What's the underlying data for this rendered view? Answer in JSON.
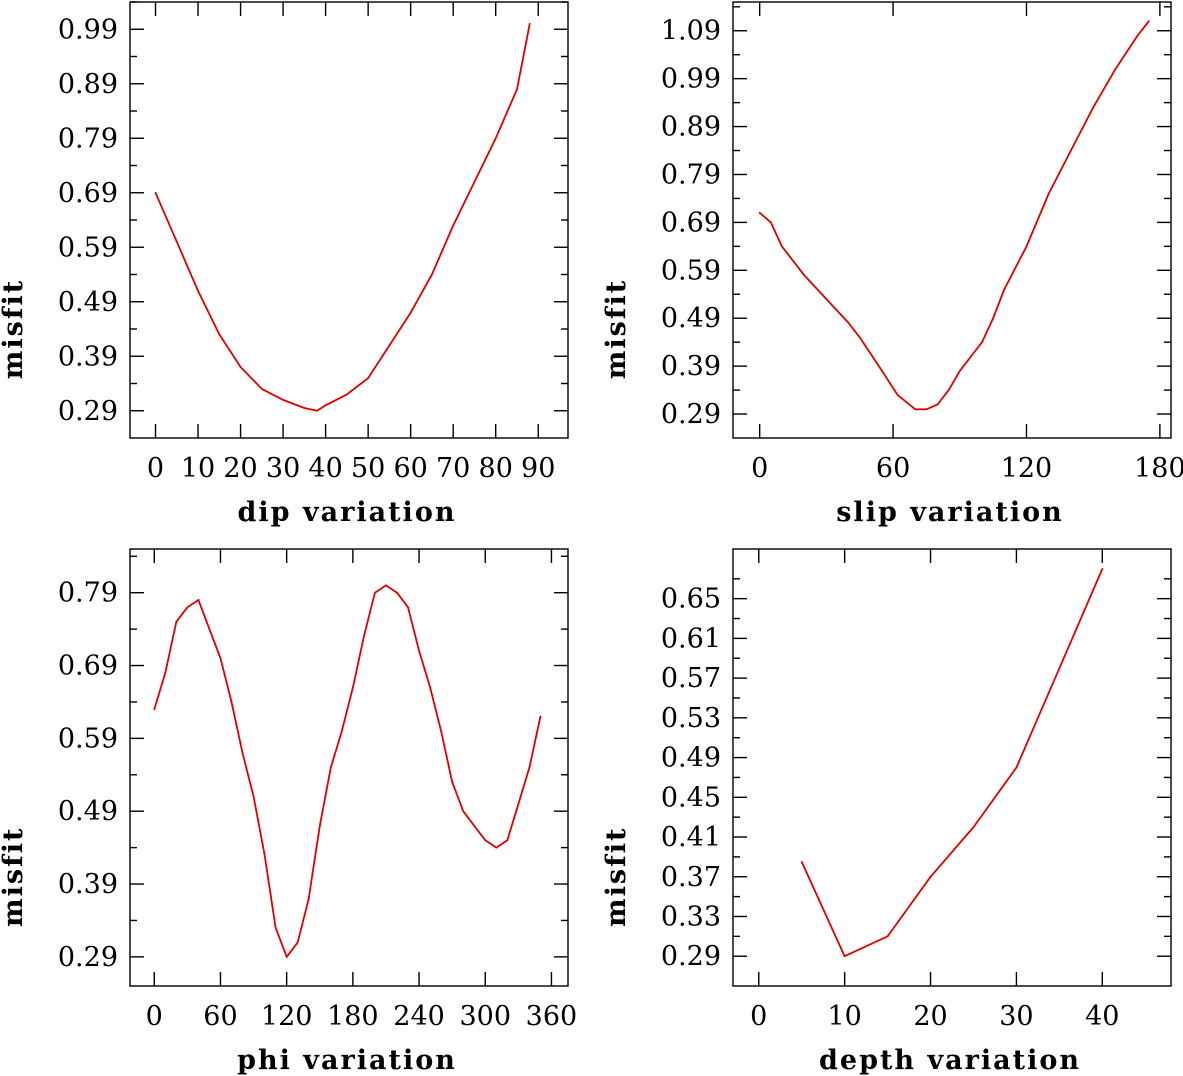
{
  "colors": {
    "curve": "#e00000",
    "axis": "#000000",
    "background": "#ffffff"
  },
  "chart_data": [
    {
      "id": "dip",
      "type": "line",
      "xlabel": "dip    variation",
      "ylabel": "misfit",
      "xlim": [
        -6,
        97
      ],
      "ylim": [
        0.24,
        1.04
      ],
      "xticks": [
        0,
        10,
        20,
        30,
        40,
        50,
        60,
        70,
        80,
        90
      ],
      "xtick_labels": [
        "0",
        "10",
        "20",
        "30",
        "40",
        "50",
        "60",
        "70",
        "80",
        "90"
      ],
      "yticks": [
        0.29,
        0.39,
        0.49,
        0.59,
        0.69,
        0.79,
        0.89,
        0.99
      ],
      "ytick_labels": [
        "0.29",
        "0.39",
        "0.49",
        "0.59",
        "0.69",
        "0.79",
        "0.89",
        "0.99"
      ],
      "x": [
        0,
        5,
        10,
        15,
        20,
        25,
        30,
        35,
        38,
        40,
        45,
        50,
        55,
        60,
        65,
        70,
        75,
        80,
        85,
        88
      ],
      "y": [
        0.69,
        0.6,
        0.51,
        0.43,
        0.37,
        0.33,
        0.31,
        0.295,
        0.29,
        0.3,
        0.32,
        0.35,
        0.41,
        0.47,
        0.54,
        0.63,
        0.71,
        0.79,
        0.88,
        1.0
      ]
    },
    {
      "id": "slip",
      "type": "line",
      "xlabel": "slip   variation",
      "ylabel": "misfit",
      "xlim": [
        -12,
        185
      ],
      "ylim": [
        0.24,
        1.15
      ],
      "xticks": [
        0,
        60,
        120,
        180
      ],
      "xtick_labels": [
        "0",
        "60",
        "120",
        "180"
      ],
      "yticks": [
        0.29,
        0.39,
        0.49,
        0.59,
        0.69,
        0.79,
        0.89,
        0.99,
        1.09
      ],
      "ytick_labels": [
        "0.29",
        "0.39",
        "0.49",
        "0.59",
        "0.69",
        "0.79",
        "0.89",
        "0.99",
        "1.09"
      ],
      "x": [
        0,
        5,
        10,
        20,
        30,
        40,
        45,
        55,
        62,
        70,
        75,
        80,
        85,
        90,
        95,
        100,
        105,
        110,
        120,
        130,
        140,
        150,
        160,
        170,
        175
      ],
      "y": [
        0.71,
        0.69,
        0.64,
        0.58,
        0.53,
        0.48,
        0.45,
        0.38,
        0.33,
        0.3,
        0.3,
        0.31,
        0.34,
        0.38,
        0.41,
        0.44,
        0.49,
        0.55,
        0.64,
        0.75,
        0.84,
        0.93,
        1.01,
        1.08,
        1.11
      ]
    },
    {
      "id": "phi",
      "type": "line",
      "xlabel": "phi    variation",
      "ylabel": "misfit",
      "xlim": [
        -22,
        375
      ],
      "ylim": [
        0.25,
        0.85
      ],
      "xticks": [
        0,
        60,
        120,
        180,
        240,
        300,
        360
      ],
      "xtick_labels": [
        "0",
        "60",
        "120",
        "180",
        "240",
        "300",
        "360"
      ],
      "yticks": [
        0.29,
        0.39,
        0.49,
        0.59,
        0.69,
        0.79
      ],
      "ytick_labels": [
        "0.29",
        "0.39",
        "0.49",
        "0.59",
        "0.69",
        "0.79"
      ],
      "x": [
        0,
        10,
        20,
        30,
        40,
        50,
        60,
        70,
        80,
        90,
        100,
        110,
        120,
        130,
        140,
        150,
        160,
        170,
        180,
        190,
        200,
        210,
        220,
        230,
        240,
        250,
        260,
        270,
        280,
        290,
        300,
        310,
        320,
        330,
        340,
        350
      ],
      "y": [
        0.63,
        0.68,
        0.75,
        0.77,
        0.78,
        0.74,
        0.7,
        0.64,
        0.57,
        0.51,
        0.43,
        0.33,
        0.29,
        0.31,
        0.37,
        0.47,
        0.55,
        0.6,
        0.66,
        0.73,
        0.79,
        0.8,
        0.79,
        0.77,
        0.71,
        0.66,
        0.6,
        0.53,
        0.49,
        0.47,
        0.45,
        0.44,
        0.45,
        0.5,
        0.55,
        0.62
      ]
    },
    {
      "id": "depth",
      "type": "line",
      "xlabel": "depth  variation",
      "ylabel": "misfit",
      "xlim": [
        -3,
        48
      ],
      "ylim": [
        0.26,
        0.7
      ],
      "xticks": [
        0,
        10,
        20,
        30,
        40
      ],
      "xtick_labels": [
        "0",
        "10",
        "20",
        "30",
        "40"
      ],
      "yticks": [
        0.29,
        0.33,
        0.37,
        0.41,
        0.45,
        0.49,
        0.53,
        0.57,
        0.61,
        0.65
      ],
      "ytick_labels": [
        "0.29",
        "0.33",
        "0.37",
        "0.41",
        "0.45",
        "0.49",
        "0.53",
        "0.57",
        "0.61",
        "0.65"
      ],
      "x": [
        5,
        10,
        15,
        20,
        25,
        30,
        35,
        40
      ],
      "y": [
        0.385,
        0.29,
        0.31,
        0.37,
        0.42,
        0.48,
        0.58,
        0.68
      ]
    }
  ]
}
